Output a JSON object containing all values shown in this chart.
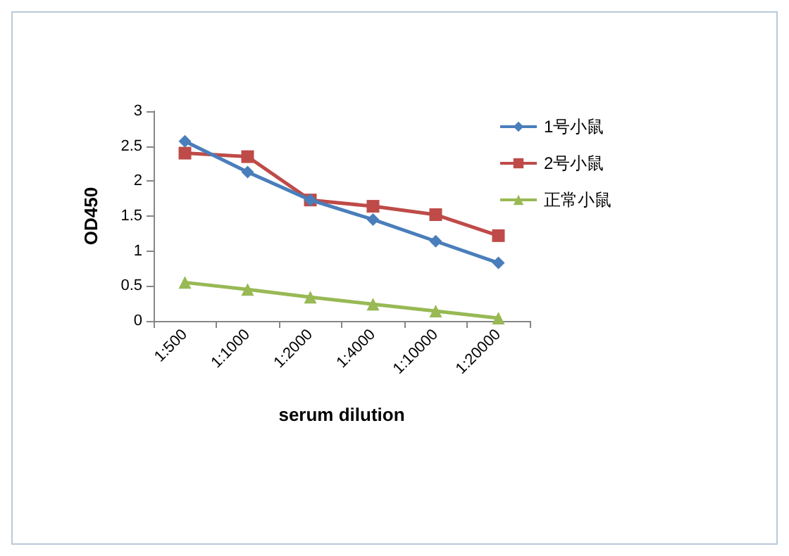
{
  "chart_data": {
    "type": "line",
    "xlabel": "serum dilution",
    "ylabel": "OD450",
    "categories": [
      "1:500",
      "1:1000",
      "1:2000",
      "1:4000",
      "1:10000",
      "1:20000"
    ],
    "series": [
      {
        "name": "1号小鼠",
        "color": "#4a7ebb",
        "marker": "diamond",
        "values": [
          2.57,
          2.13,
          1.73,
          1.45,
          1.14,
          0.83
        ]
      },
      {
        "name": "2号小鼠",
        "color": "#be4b48",
        "marker": "square",
        "values": [
          2.4,
          2.35,
          1.73,
          1.64,
          1.52,
          1.22
        ]
      },
      {
        "name": "正常小鼠",
        "color": "#98b954",
        "marker": "triangle",
        "values": [
          0.55,
          0.45,
          0.34,
          0.24,
          0.14,
          0.04
        ]
      }
    ],
    "ylim": [
      0,
      3
    ],
    "yticks": [
      0,
      0.5,
      1,
      1.5,
      2,
      2.5,
      3
    ],
    "grid": false,
    "legend": "top right"
  }
}
